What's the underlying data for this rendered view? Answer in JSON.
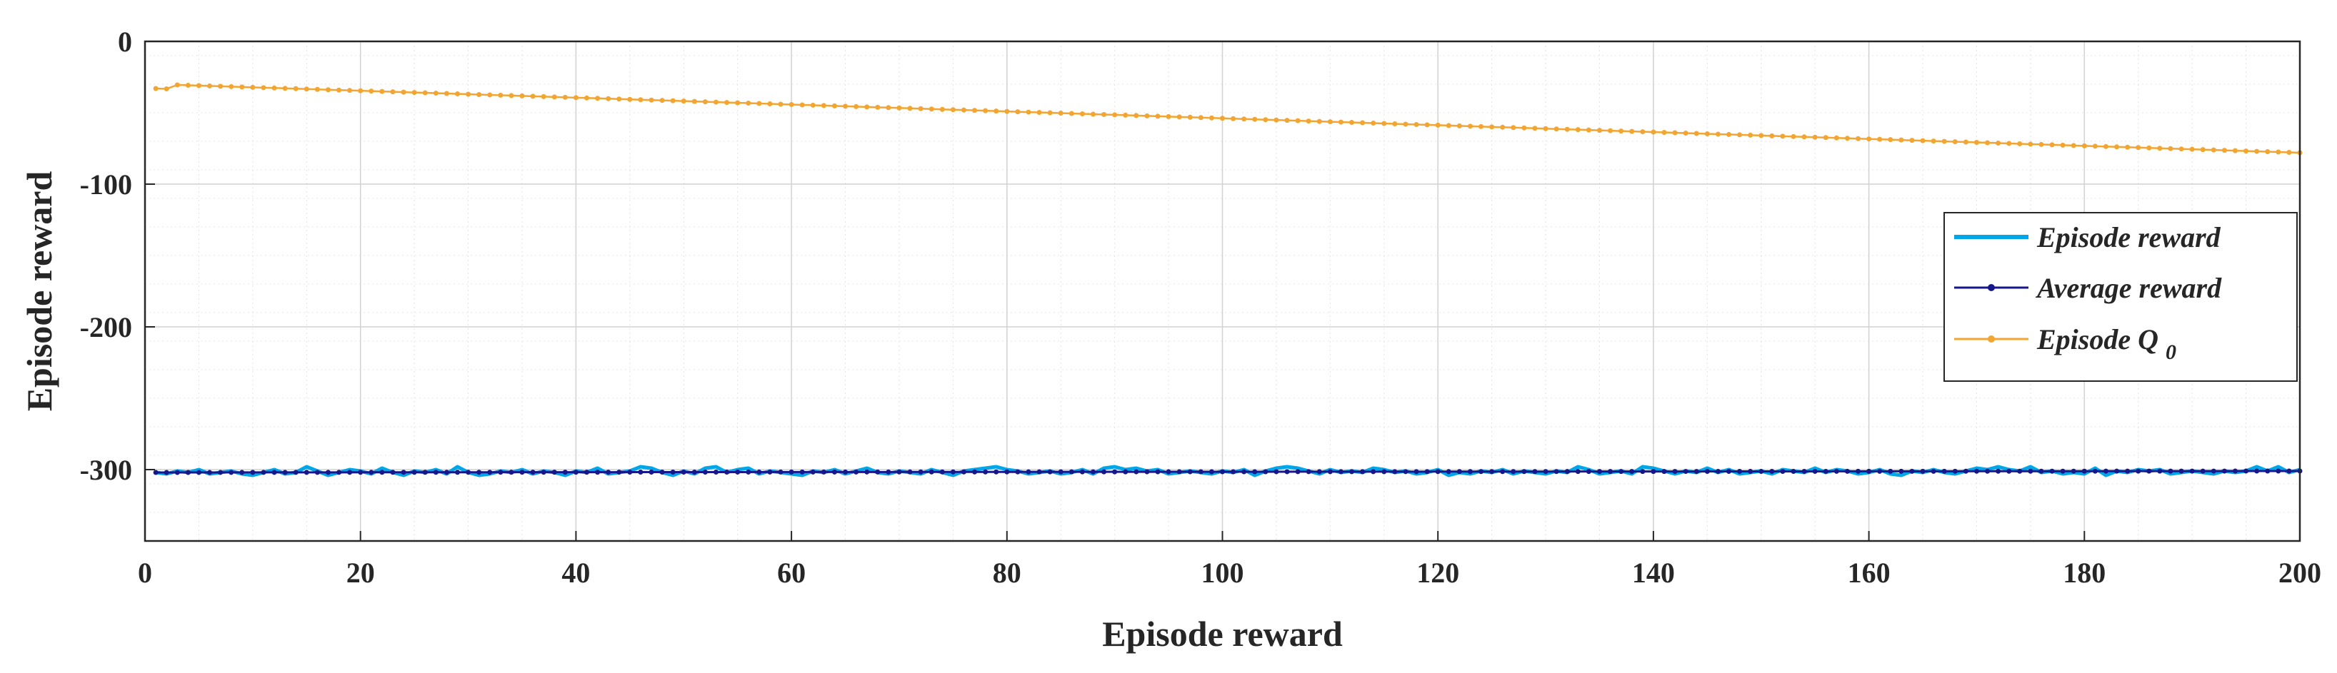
{
  "chart_data": {
    "type": "line",
    "title": "",
    "xlabel": "Episode reward",
    "ylabel": "Episode reward",
    "xlim": [
      0,
      200
    ],
    "ylim": [
      -350,
      0
    ],
    "xticks": [
      0,
      20,
      40,
      60,
      80,
      100,
      120,
      140,
      160,
      180,
      200
    ],
    "yticks": [
      0,
      -100,
      -200,
      -300
    ],
    "grid": true,
    "minor_grid": true,
    "legend_position": "right",
    "series": [
      {
        "name": "Episode reward",
        "color": "#00a6e8",
        "style": "line",
        "x_start": 1,
        "x_end": 200,
        "approx_value": -302,
        "y": [
          -302,
          -303,
          -301,
          -302,
          -300,
          -303,
          -302,
          -301,
          -303,
          -304,
          -302,
          -300,
          -303,
          -302,
          -298,
          -301,
          -304,
          -302,
          -300,
          -301,
          -303,
          -299,
          -302,
          -304,
          -301,
          -302,
          -300,
          -303,
          -298,
          -302,
          -304,
          -303,
          -301,
          -302,
          -300,
          -303,
          -301,
          -302,
          -304,
          -301,
          -302,
          -299,
          -303,
          -302,
          -301,
          -298,
          -299,
          -302,
          -304,
          -301,
          -303,
          -299,
          -298,
          -302,
          -300,
          -299,
          -303,
          -301,
          -302,
          -303,
          -304,
          -301,
          -302,
          -300,
          -303,
          -301,
          -299,
          -302,
          -303,
          -301,
          -302,
          -303,
          -300,
          -302,
          -304,
          -301,
          -300,
          -299,
          -298,
          -300,
          -301,
          -303,
          -302,
          -301,
          -303,
          -302,
          -300,
          -303,
          -299,
          -298,
          -300,
          -299,
          -301,
          -300,
          -303,
          -302,
          -301,
          -302,
          -303,
          -301,
          -302,
          -300,
          -304,
          -301,
          -299,
          -298,
          -299,
          -301,
          -303,
          -300,
          -302,
          -301,
          -302,
          -299,
          -300,
          -302,
          -301,
          -303,
          -302,
          -300,
          -304,
          -302,
          -303,
          -301,
          -302,
          -300,
          -303,
          -301,
          -302,
          -303,
          -301,
          -302,
          -298,
          -300,
          -303,
          -302,
          -301,
          -303,
          -298,
          -299,
          -301,
          -303,
          -301,
          -302,
          -299,
          -302,
          -300,
          -303,
          -302,
          -301,
          -303,
          -300,
          -301,
          -302,
          -299,
          -302,
          -300,
          -301,
          -303,
          -302,
          -300,
          -303,
          -304,
          -301,
          -302,
          -300,
          -302,
          -303,
          -301,
          -299,
          -300,
          -298,
          -300,
          -301,
          -298,
          -302,
          -301,
          -303,
          -302,
          -303,
          -299,
          -304,
          -301,
          -302,
          -300,
          -301,
          -300,
          -303,
          -302,
          -301,
          -302,
          -303,
          -301,
          -302,
          -301,
          -298,
          -301,
          -298,
          -302,
          -300
        ]
      },
      {
        "name": "Average reward",
        "color": "#17178c",
        "style": "line-dot",
        "x_start": 1,
        "x_end": 200,
        "y_start": -302,
        "y_end": -301
      },
      {
        "name": "Episode Q0",
        "name_main": "Episode Q",
        "name_sub": "0",
        "color": "#f2a531",
        "style": "line-dot",
        "x_start": 1,
        "x_end": 200,
        "y_start": -30,
        "y_end": -78
      }
    ]
  }
}
